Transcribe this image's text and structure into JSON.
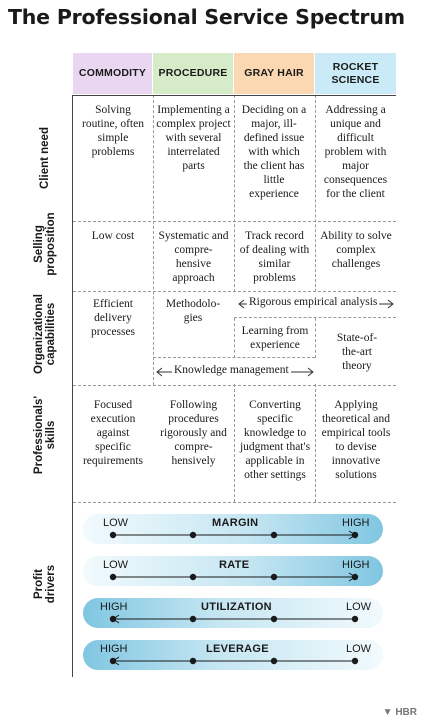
{
  "title": "The Professional Service Spectrum",
  "columns": [
    {
      "label": "COMMODITY",
      "color": "#e9d7f2"
    },
    {
      "label": "PROCEDURE",
      "color": "#d6ecc9"
    },
    {
      "label": "GRAY HAIR",
      "color": "#fbd7b2"
    },
    {
      "label": "ROCKET SCIENCE",
      "color": "#c9eaf6"
    }
  ],
  "rows": {
    "client_need": {
      "label": "Client need",
      "cells": [
        "Solving routine, often simple problems",
        "Implementing a complex project with several interrelated parts",
        "Deciding on a major, ill-defined issue with which the client has little experience",
        "Addressing a unique and difficult problem with major consequences for the client"
      ]
    },
    "selling_proposition": {
      "label": "Selling proposition",
      "cells": [
        "Low cost",
        "Systematic and compre-hensive approach",
        "Track record of dealing with similar problems",
        "Ability to solve complex challenges"
      ]
    },
    "organizational_capabilities": {
      "label": "Organizational capabilities",
      "commodity": "Efficient delivery processes",
      "procedure": "Methodolo-gies",
      "rigorous": "Rigorous empirical analysis",
      "learning": "Learning from experience",
      "state_of_art": "State-of-the-art theory",
      "knowledge": "Knowledge management"
    },
    "professionals_skills": {
      "label": "Professionals' skills",
      "cells": [
        "Focused execution against specific requirements",
        "Following procedures rigorously and compre-hensively",
        "Converting specific knowledge to judgment that's applicable in other settings",
        "Applying theoretical and empirical tools to devise innovative solutions"
      ]
    },
    "profit_drivers": {
      "label": "Profit drivers",
      "bars": [
        {
          "name": "MARGIN",
          "left": "LOW",
          "right": "HIGH",
          "direction": "right"
        },
        {
          "name": "RATE",
          "left": "LOW",
          "right": "HIGH",
          "direction": "right"
        },
        {
          "name": "UTILIZATION",
          "left": "HIGH",
          "right": "LOW",
          "direction": "left"
        },
        {
          "name": "LEVERAGE",
          "left": "HIGH",
          "right": "LOW",
          "direction": "left"
        }
      ]
    }
  },
  "brand": "HBR"
}
